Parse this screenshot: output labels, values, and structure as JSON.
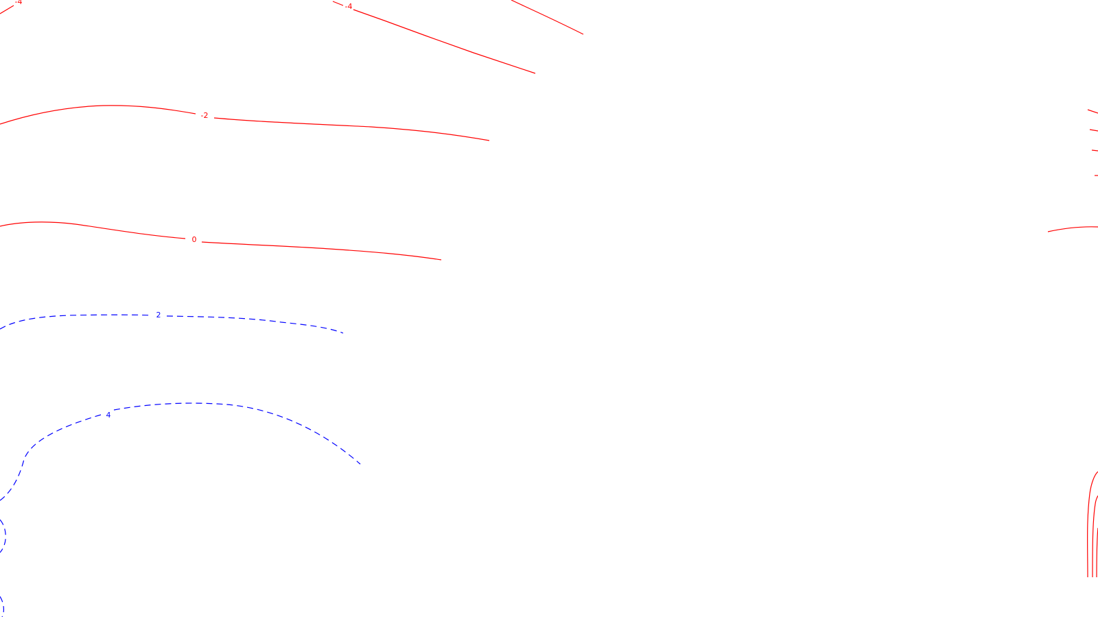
{
  "chart_data": {
    "type": "contour",
    "title": "",
    "xlabel": "",
    "ylabel": "",
    "grid": false,
    "legend": "none",
    "colors": {
      "positive": "#ff0000",
      "negative": "#0000ff",
      "background": "#ffffff"
    },
    "levels": [
      {
        "value": -4,
        "label": "-4",
        "style": "solid",
        "color": "#ff0000"
      },
      {
        "value": -2,
        "label": "-2",
        "style": "solid",
        "color": "#ff0000"
      },
      {
        "value": 0,
        "label": "0",
        "style": "solid",
        "color": "#ff0000"
      },
      {
        "value": 2,
        "label": "2",
        "style": "dashed",
        "color": "#0000ff"
      },
      {
        "value": 4,
        "label": "4",
        "style": "dashed",
        "color": "#0000ff"
      }
    ]
  }
}
